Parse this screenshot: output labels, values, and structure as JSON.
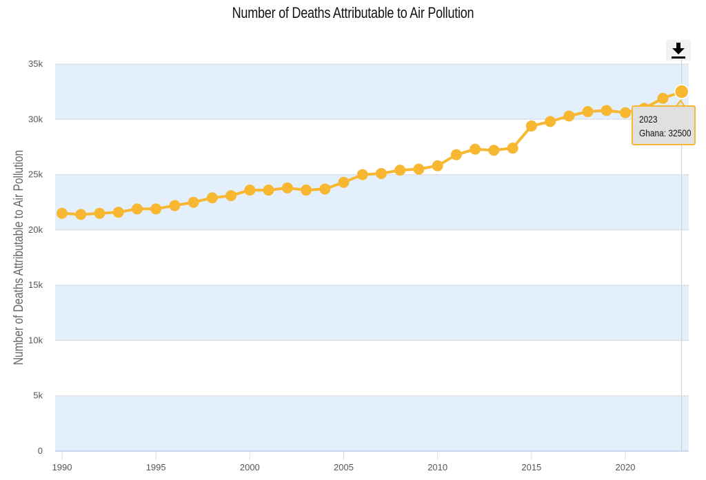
{
  "chart_data": {
    "type": "line",
    "title": "Number of Deaths Attributable to Air Pollution",
    "xlabel": "",
    "ylabel": "Number of Deaths Attributable to Air Pollution",
    "xlim": [
      1990,
      2023
    ],
    "ylim": [
      0,
      35000
    ],
    "x_ticks": [
      1990,
      1995,
      2000,
      2005,
      2010,
      2015,
      2020
    ],
    "x_tick_labels": [
      "1990",
      "1995",
      "2000",
      "2005",
      "2010",
      "2015",
      "2020"
    ],
    "y_ticks": [
      0,
      5000,
      10000,
      15000,
      20000,
      25000,
      30000,
      35000
    ],
    "y_tick_labels": [
      "0",
      "5k",
      "10k",
      "15k",
      "20k",
      "25k",
      "30k",
      "35k"
    ],
    "grid": "alternating horizontal bands",
    "legend": "none",
    "series": [
      {
        "name": "Ghana",
        "color": "#f7b731",
        "x": [
          1990,
          1991,
          1992,
          1993,
          1994,
          1995,
          1996,
          1997,
          1998,
          1999,
          2000,
          2001,
          2002,
          2003,
          2004,
          2005,
          2006,
          2007,
          2008,
          2009,
          2010,
          2011,
          2012,
          2013,
          2014,
          2015,
          2016,
          2017,
          2018,
          2019,
          2020,
          2021,
          2022,
          2023
        ],
        "values": [
          21500,
          21400,
          21500,
          21600,
          21900,
          21900,
          22200,
          22500,
          22900,
          23100,
          23600,
          23600,
          23800,
          23600,
          23700,
          24300,
          25000,
          25100,
          25400,
          25500,
          25800,
          26800,
          27300,
          27200,
          27400,
          29400,
          29800,
          30300,
          30700,
          30800,
          30600,
          31000,
          31900,
          32500
        ]
      }
    ],
    "tooltip": {
      "year": "2023",
      "label": "Ghana: 32500"
    },
    "colors": {
      "line": "#f7b731",
      "band": "#e3f0fc",
      "tooltip_bg": "#e0e0e0",
      "tooltip_border": "#f7b731"
    }
  },
  "toolbar": {
    "download_icon": "download-icon"
  }
}
